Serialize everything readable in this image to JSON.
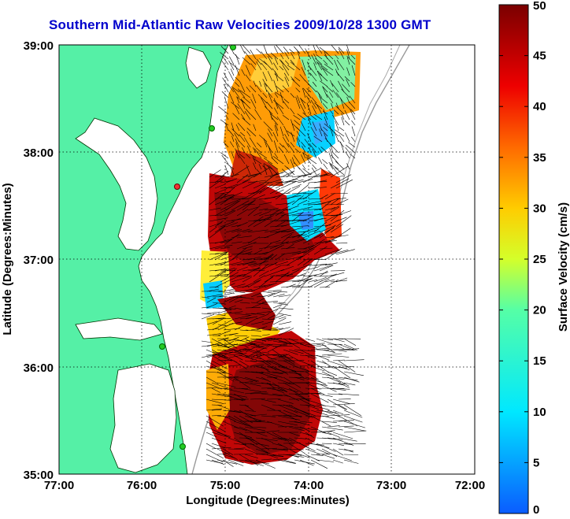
{
  "title": "Southern Mid-Atlantic Raw Velocities 2009/10/28 1300 GMT",
  "x_axis": {
    "label": "Longitude (Degrees:Minutes)",
    "ticks": [
      "77:00",
      "76:00",
      "75:00",
      "74:00",
      "73:00",
      "72:00"
    ]
  },
  "y_axis": {
    "label": "Latitude (Degrees:Minutes)",
    "ticks": [
      "39:00",
      "38:00",
      "37:00",
      "36:00",
      "35:00"
    ]
  },
  "colorbar": {
    "label": "Surface Velocity (cm/s)",
    "ticks": [
      "50",
      "45",
      "40",
      "35",
      "30",
      "25",
      "20",
      "15",
      "10",
      "5",
      "0"
    ],
    "range_cm_s": [
      0,
      50
    ]
  },
  "map_extent": {
    "lon_range": [
      -77,
      -72
    ],
    "lat_range": [
      35,
      39
    ],
    "grid": "dotted lines at each whole degree"
  },
  "colors": {
    "land": "#55f0a6",
    "title": "#0000cc",
    "station": "#22cc22",
    "station_alert": "#ee3333"
  },
  "velocity_field": {
    "description": "raw surface current velocity vectors colored by speed",
    "speed_min_cm_s": 0,
    "speed_max_cm_s": 50
  }
}
